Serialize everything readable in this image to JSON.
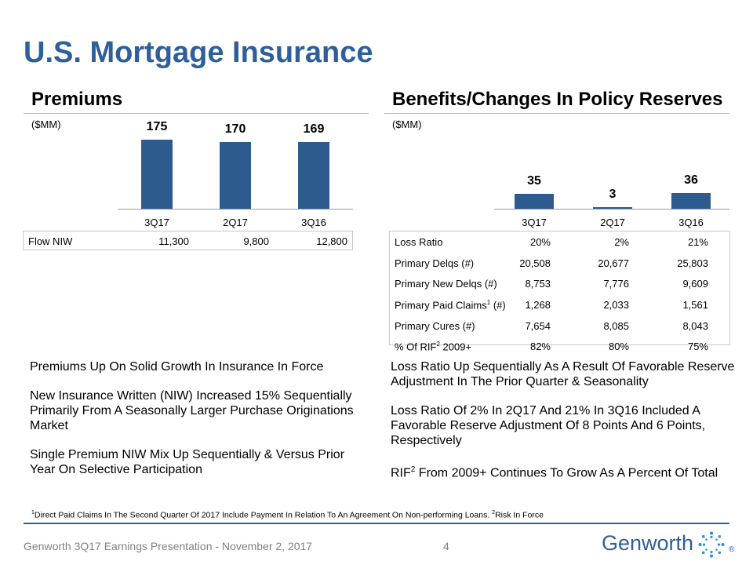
{
  "title": "U.S. Mortgage Insurance",
  "premiums": {
    "heading": "Premiums",
    "unit": "($MM)",
    "chart_data": {
      "type": "bar",
      "title": "Premiums",
      "ylabel": "($MM)",
      "categories": [
        "3Q17",
        "2Q17",
        "3Q16"
      ],
      "values": [
        175,
        170,
        169
      ],
      "value_labels": [
        "175",
        "170",
        "169"
      ]
    },
    "flow": {
      "label": "Flow NIW",
      "values": [
        "11,300",
        "9,800",
        "12,800"
      ]
    },
    "bullets": [
      "Premiums Up On Solid Growth In Insurance In Force",
      "New Insurance Written (NIW) Increased 15% Sequentially Primarily From A Seasonally Larger Purchase Originations Market",
      "Single Premium NIW Mix Up Sequentially & Versus Prior Year On Selective Participation"
    ]
  },
  "benefits": {
    "heading": "Benefits/Changes In Policy Reserves",
    "unit": "($MM)",
    "chart_data": {
      "type": "bar",
      "title": "Benefits/Changes In Policy Reserves",
      "ylabel": "($MM)",
      "categories": [
        "3Q17",
        "2Q17",
        "3Q16"
      ],
      "values": [
        35,
        3,
        36
      ],
      "value_labels": [
        "35",
        "3",
        "36"
      ]
    },
    "metrics": [
      {
        "label": "Loss Ratio",
        "values": [
          "20%",
          "2%",
          "21%"
        ]
      },
      {
        "label": "Primary Delqs (#)",
        "values": [
          "20,508",
          "20,677",
          "25,803"
        ]
      },
      {
        "label": "Primary New Delqs (#)",
        "values": [
          "8,753",
          "7,776",
          "9,609"
        ]
      },
      {
        "label_pre": "Primary Paid Claims",
        "label_sup": "1",
        "label_post": " (#)",
        "values": [
          "1,268",
          "2,033",
          "1,561"
        ]
      },
      {
        "label": "Primary Cures (#)",
        "values": [
          "7,654",
          "8,085",
          "8,043"
        ]
      },
      {
        "label_pre": "% Of RIF",
        "label_sup": "2",
        "label_post": " 2009+",
        "values": [
          "82%",
          "80%",
          "75%"
        ]
      }
    ],
    "bullets": [
      {
        "text": "Loss Ratio Up Sequentially As A Result Of Favorable Reserve Adjustment In The Prior Quarter & Seasonality"
      },
      {
        "text": "Loss Ratio Of 2% In 2Q17 And 21% In 3Q16 Included A Favorable Reserve Adjustment Of 8 Points And 6 Points, Respectively"
      },
      {
        "pre": "RIF",
        "sup": "2",
        "post": " From 2009+ Continues To Grow As A Percent Of Total"
      }
    ]
  },
  "footnote": {
    "sup1": "1",
    "text1": "Direct Paid Claims In The Second Quarter Of 2017 Include Payment In Relation To An Agreement On Non-performing Loans. ",
    "sup2": "2",
    "text2": "Risk In Force"
  },
  "footer": {
    "presentation": "Genworth 3Q17 Earnings Presentation - November 2, 2017",
    "page": "4",
    "logo": "Genworth",
    "registered": "®"
  },
  "colors": {
    "accent": "#2e5f98",
    "bar": "#2d5b8e"
  }
}
